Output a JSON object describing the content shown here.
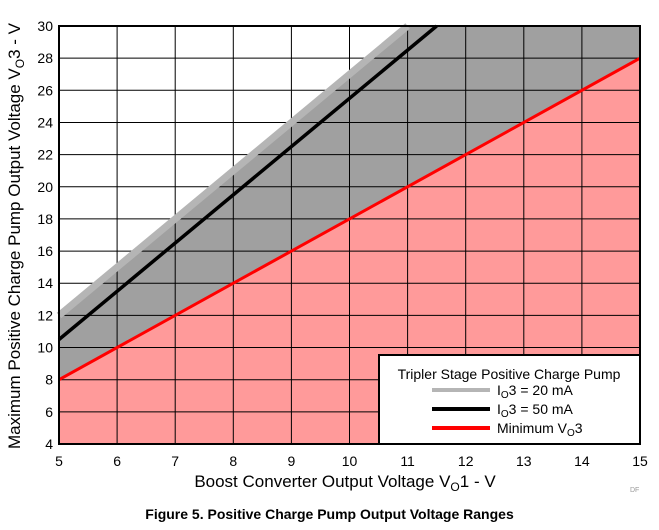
{
  "chart_data": {
    "type": "line",
    "caption": "Figure 5. Positive Charge Pump Output Voltage Ranges",
    "watermark": "DF",
    "xlabel": {
      "main": "Boost Converter Output Voltage V",
      "sub": "O",
      "suffix": "1 - V"
    },
    "ylabel": {
      "main": "Maximum Positive Charge Pump Output Voltage V",
      "sub": "O",
      "suffix": "3 - V"
    },
    "xlim": [
      5,
      15
    ],
    "ylim": [
      4,
      30
    ],
    "xticks": [
      5,
      6,
      7,
      8,
      9,
      10,
      11,
      12,
      13,
      14,
      15
    ],
    "yticks": [
      4,
      6,
      8,
      10,
      12,
      14,
      16,
      18,
      20,
      22,
      24,
      26,
      28,
      30
    ],
    "grid": true,
    "colors": {
      "region_upper": "#a0a0a0",
      "region_lower": "#ff9a9a",
      "io20": "#b5b5b5",
      "io50": "#000000",
      "min": "#ff0000"
    },
    "legend": {
      "title": "Tripler Stage Positive Charge Pump",
      "placement": "bottom-right",
      "entries": [
        {
          "prefix": "I",
          "sub": "O",
          "suffix": "3 = 20 mA",
          "color": "#b5b5b5"
        },
        {
          "prefix": "I",
          "sub": "O",
          "suffix": "3 = 50 mA",
          "color": "#000000"
        },
        {
          "prefix": "Minimum V",
          "sub": "O",
          "suffix": "3",
          "color": "#ff0000"
        }
      ]
    },
    "series": [
      {
        "name": "IO3 = 20 mA",
        "x": [
          5,
          11
        ],
        "y": [
          12,
          30
        ],
        "color": "#b5b5b5"
      },
      {
        "name": "IO3 = 50 mA",
        "x": [
          5,
          11.5
        ],
        "y": [
          10.5,
          30
        ],
        "color": "#000000"
      },
      {
        "name": "Minimum VO3",
        "x": [
          5,
          15
        ],
        "y": [
          8,
          28
        ],
        "color": "#ff0000"
      }
    ]
  }
}
